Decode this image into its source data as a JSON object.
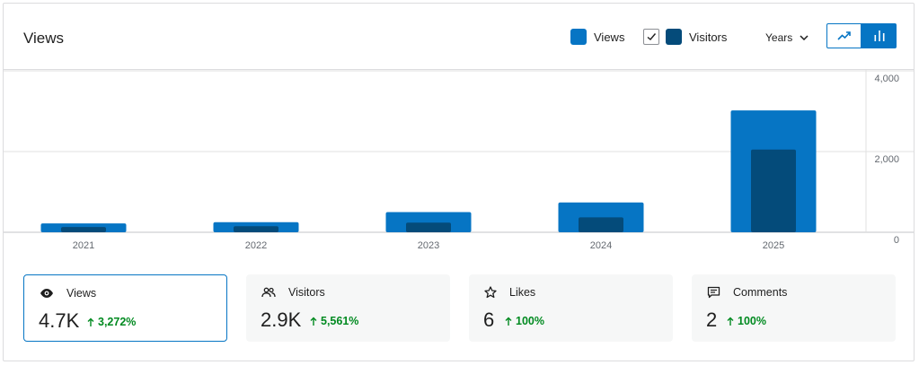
{
  "header": {
    "title": "Views",
    "legend_views": "Views",
    "legend_visitors": "Visitors",
    "visitors_checked": true,
    "period": "Years",
    "chart_mode": "bar"
  },
  "colors": {
    "views": "#0675c4",
    "visitors": "#044b7a",
    "positive": "#008a20"
  },
  "chart_data": {
    "type": "bar",
    "categories": [
      "2021",
      "2022",
      "2023",
      "2024",
      "2025"
    ],
    "series": [
      {
        "name": "Views",
        "values": [
          220,
          250,
          500,
          740,
          3020
        ]
      },
      {
        "name": "Visitors",
        "values": [
          130,
          150,
          240,
          370,
          2050
        ]
      }
    ],
    "y_ticks": [
      "4,000",
      "2,000",
      "0"
    ],
    "ylim": [
      0,
      4000
    ],
    "grid": true
  },
  "stats": [
    {
      "label": "Views",
      "icon": "eye-icon",
      "value": "4.7K",
      "delta": "3,272%",
      "active": true
    },
    {
      "label": "Visitors",
      "icon": "people-icon",
      "value": "2.9K",
      "delta": "5,561%",
      "active": false
    },
    {
      "label": "Likes",
      "icon": "star-icon",
      "value": "6",
      "delta": "100%",
      "active": false
    },
    {
      "label": "Comments",
      "icon": "comment-icon",
      "value": "2",
      "delta": "100%",
      "active": false
    }
  ]
}
